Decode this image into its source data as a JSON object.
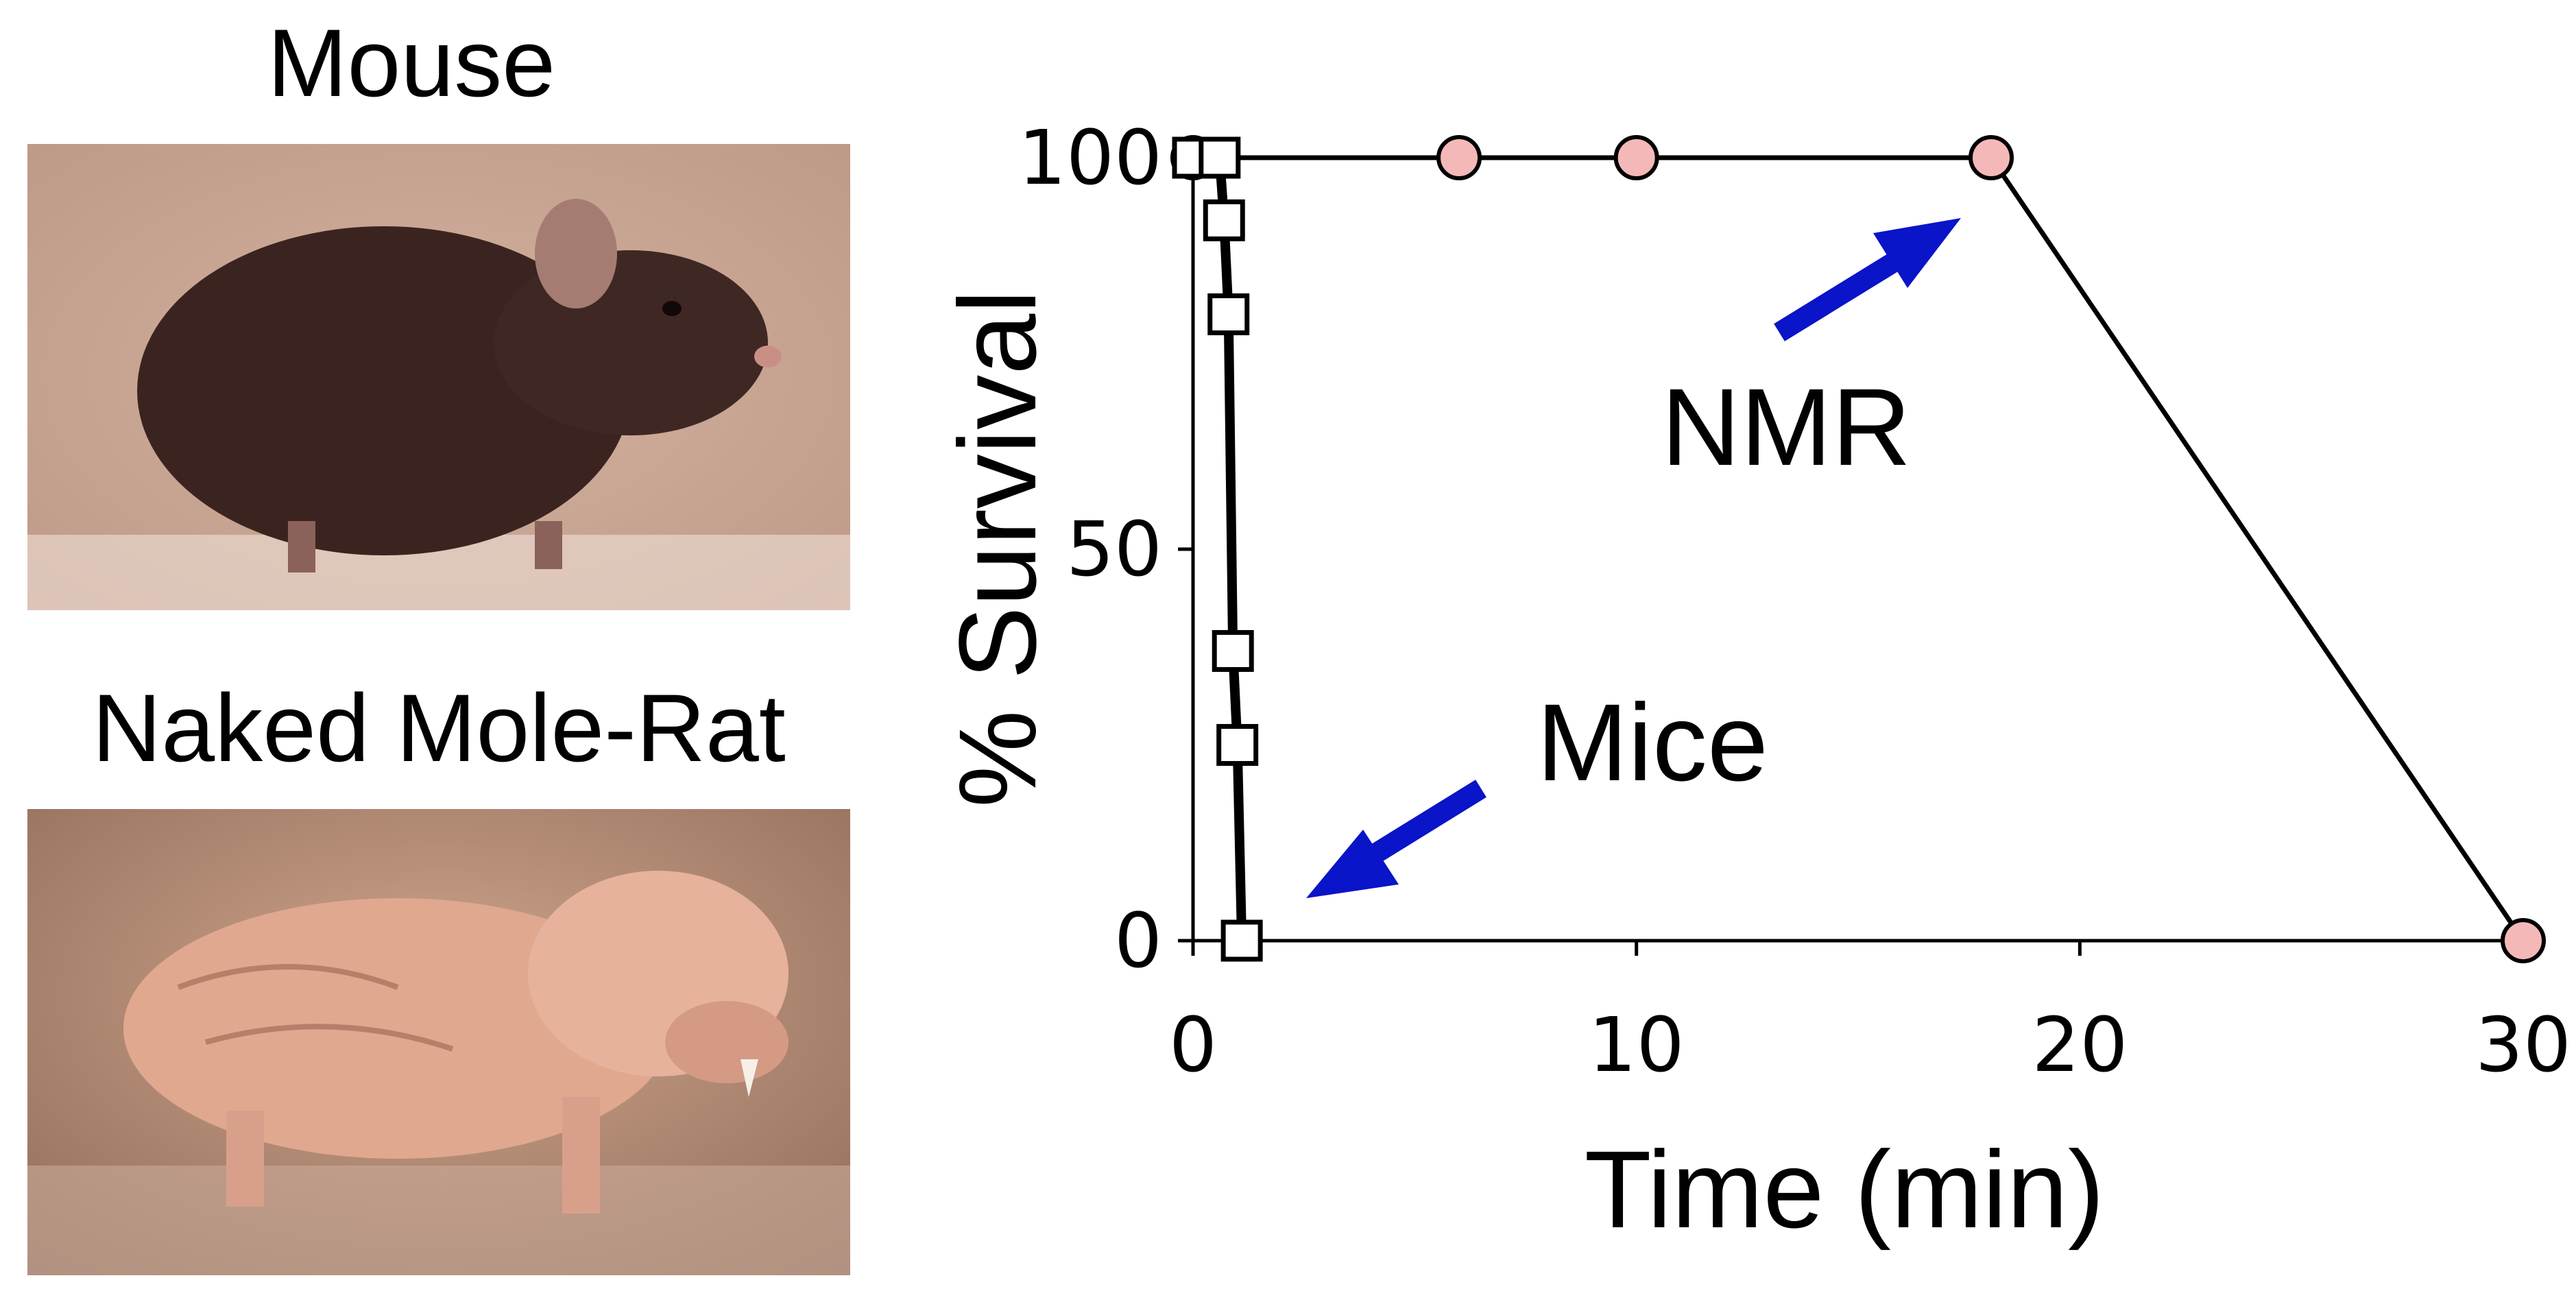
{
  "panels": {
    "mouse": {
      "title": "Mouse",
      "photo_icon": "mouse-photo"
    },
    "nmr": {
      "title": "Naked Mole-Rat",
      "photo_icon": "naked-mole-rat-photo"
    }
  },
  "annotations": {
    "nmr_label": "NMR",
    "mice_label": "Mice",
    "arrow_color": "#0a14c8"
  },
  "chart_data": {
    "type": "line",
    "xlabel": "Time (min)",
    "ylabel": "% Survival",
    "xlim": [
      0,
      30
    ],
    "ylim": [
      0,
      100
    ],
    "xticks": [
      0,
      10,
      20,
      30
    ],
    "yticks": [
      0,
      50,
      100
    ],
    "series": [
      {
        "name": "Mice",
        "marker": "square",
        "color": "#000000",
        "marker_fill": "#ffffff",
        "x": [
          0.0,
          0.6,
          0.7,
          0.8,
          0.9,
          1.0,
          1.1
        ],
        "y": [
          100,
          100,
          92,
          80,
          37,
          25,
          0
        ]
      },
      {
        "name": "NMR",
        "marker": "circle",
        "color": "#000000",
        "marker_fill": "#f4b8b8",
        "x": [
          0.0,
          6,
          10,
          18,
          30
        ],
        "y": [
          100,
          100,
          100,
          100,
          0
        ]
      }
    ]
  }
}
